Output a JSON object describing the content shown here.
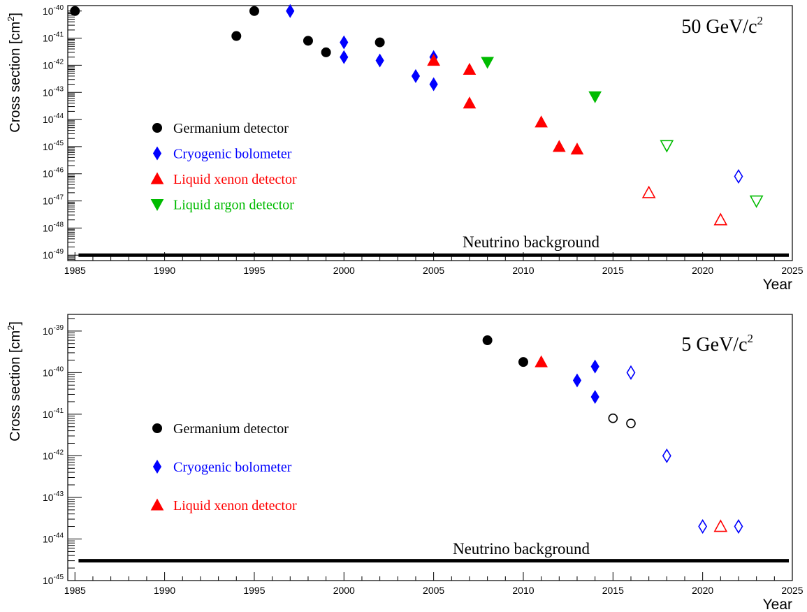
{
  "chart_data": [
    {
      "type": "scatter",
      "title": "50 GeV/c²",
      "title_main": "50 GeV/c",
      "title_sup": "2",
      "xlabel": "Year",
      "ylabel_main": "Cross section [cm",
      "ylabel_sup": "2",
      "ylabel_end": "]",
      "xlim": [
        1984.6,
        2025
      ],
      "ylim_exp": [
        -49.2,
        -39.8
      ],
      "y_scale": "log",
      "x_ticks": [
        "1985",
        "1990",
        "1995",
        "2000",
        "2005",
        "2010",
        "2015",
        "2020",
        "2025"
      ],
      "y_ticks": [
        -49,
        -48,
        -47,
        -46,
        -45,
        -44,
        -43,
        -42,
        -41,
        -40
      ],
      "legend": [
        {
          "label": "Germanium detector",
          "marker": "circle",
          "color": "#000000"
        },
        {
          "label": "Cryogenic bolometer",
          "marker": "diamond",
          "color": "#0000ff"
        },
        {
          "label": "Liquid xenon detector",
          "marker": "triangle-up",
          "color": "#ff0000"
        },
        {
          "label": "Liquid argon detector",
          "marker": "triangle-down",
          "color": "#00bb00"
        }
      ],
      "reference_line": {
        "label": "Neutrino background",
        "y": 1e-49
      },
      "series": [
        {
          "name": "Germanium detector",
          "marker": "circle",
          "color": "#000000",
          "points": [
            [
              1985,
              1e-40,
              true
            ],
            [
              1994,
              1.2e-41,
              true
            ],
            [
              1995,
              1e-40,
              true
            ],
            [
              1998,
              8e-42,
              true
            ],
            [
              1999,
              3e-42,
              true
            ],
            [
              2002,
              7e-42,
              true
            ]
          ]
        },
        {
          "name": "Cryogenic bolometer",
          "marker": "diamond",
          "color": "#0000ff",
          "points": [
            [
              1997,
              1e-40,
              true
            ],
            [
              2000,
              7e-42,
              true
            ],
            [
              2000,
              2e-42,
              true
            ],
            [
              2002,
              1.5e-42,
              true
            ],
            [
              2004,
              4e-43,
              true
            ],
            [
              2005,
              2e-42,
              true
            ],
            [
              2005,
              2e-43,
              true
            ],
            [
              2022,
              8e-47,
              false
            ]
          ]
        },
        {
          "name": "Liquid xenon detector",
          "marker": "triangle-up",
          "color": "#ff0000",
          "points": [
            [
              2005,
              1.5e-42,
              true
            ],
            [
              2007,
              7e-43,
              true
            ],
            [
              2007,
              4e-44,
              true
            ],
            [
              2011,
              8e-45,
              true
            ],
            [
              2012,
              1e-45,
              true
            ],
            [
              2013,
              8e-46,
              true
            ],
            [
              2017,
              2e-47,
              false
            ],
            [
              2021,
              2e-48,
              false
            ]
          ]
        },
        {
          "name": "Liquid argon detector",
          "marker": "triangle-down",
          "color": "#00bb00",
          "points": [
            [
              2008,
              1.3e-42,
              true
            ],
            [
              2014,
              7e-44,
              true
            ],
            [
              2018,
              1.1e-45,
              false
            ],
            [
              2023,
              1e-47,
              false
            ]
          ]
        }
      ]
    },
    {
      "type": "scatter",
      "title": "5 GeV/c²",
      "title_main": "5 GeV/c",
      "title_sup": "2",
      "xlabel": "Year",
      "ylabel_main": "Cross section [cm",
      "ylabel_sup": "2",
      "ylabel_end": "]",
      "xlim": [
        1984.6,
        2025
      ],
      "ylim_exp": [
        -45,
        -38.6
      ],
      "y_scale": "log",
      "x_ticks": [
        "1985",
        "1990",
        "1995",
        "2000",
        "2005",
        "2010",
        "2015",
        "2020",
        "2025"
      ],
      "y_ticks": [
        -45,
        -44,
        -43,
        -42,
        -41,
        -40,
        -39
      ],
      "legend": [
        {
          "label": "Germanium detector",
          "marker": "circle",
          "color": "#000000"
        },
        {
          "label": "Cryogenic bolometer",
          "marker": "diamond",
          "color": "#0000ff"
        },
        {
          "label": "Liquid xenon detector",
          "marker": "triangle-up",
          "color": "#ff0000"
        }
      ],
      "reference_line": {
        "label": "Neutrino background",
        "y": 3e-45
      },
      "series": [
        {
          "name": "Germanium detector",
          "marker": "circle",
          "color": "#000000",
          "points": [
            [
              2008,
              6e-40,
              true
            ],
            [
              2010,
              1.8e-40,
              true
            ],
            [
              2015,
              8e-42,
              false
            ],
            [
              2016,
              6e-42,
              false
            ]
          ]
        },
        {
          "name": "Cryogenic bolometer",
          "marker": "diamond",
          "color": "#0000ff",
          "points": [
            [
              2013,
              6.5e-41,
              true
            ],
            [
              2014,
              1.4e-40,
              true
            ],
            [
              2014,
              2.6e-41,
              true
            ],
            [
              2016,
              1e-40,
              false
            ],
            [
              2018,
              1e-42,
              false
            ],
            [
              2020,
              2e-44,
              false
            ],
            [
              2022,
              2e-44,
              false
            ]
          ]
        },
        {
          "name": "Liquid xenon detector",
          "marker": "triangle-up",
          "color": "#ff0000",
          "points": [
            [
              2011,
              1.8e-40,
              true
            ],
            [
              2021,
              2e-44,
              false
            ]
          ]
        }
      ]
    }
  ]
}
